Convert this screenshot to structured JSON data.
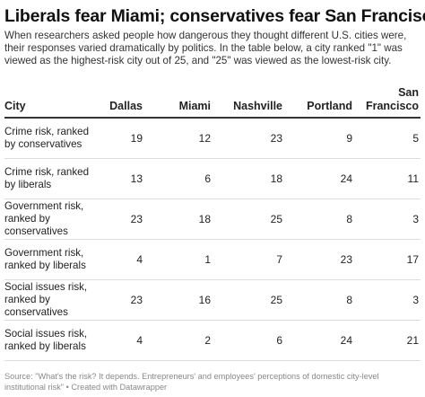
{
  "title": "Liberals fear Miami; conservatives fear San Francisco",
  "description": "When researchers asked people how dangerous they thought different U.S. cities were, their responses varied dramatically by politics. In the table below, a city ranked \"1\" was viewed as the highest-risk city out of 25, and \"25\" was viewed as the lowest-risk city.",
  "table": {
    "columns": [
      "City",
      "Dallas",
      "Miami",
      "Nashville",
      "Portland",
      "San Francisco"
    ],
    "rows": [
      {
        "label": "Crime risk, ranked by conservatives",
        "values": [
          "19",
          "12",
          "23",
          "9",
          "5"
        ]
      },
      {
        "label": "Crime risk, ranked by liberals",
        "values": [
          "13",
          "6",
          "18",
          "24",
          "11"
        ]
      },
      {
        "label": "Government risk, ranked by conservatives",
        "values": [
          "23",
          "18",
          "25",
          "8",
          "3"
        ]
      },
      {
        "label": "Government risk, ranked by liberals",
        "values": [
          "4",
          "1",
          "7",
          "23",
          "17"
        ]
      },
      {
        "label": "Social issues risk, ranked by conservatives",
        "values": [
          "23",
          "16",
          "25",
          "8",
          "3"
        ]
      },
      {
        "label": "Social issues risk, ranked by liberals",
        "values": [
          "4",
          "2",
          "6",
          "24",
          "21"
        ]
      }
    ]
  },
  "footer": {
    "source": "Source: \"What's the risk? It depends. Entrepreneurs' and employees' perceptions of domestic city-level institutional risk\" • Created with Datawrapper"
  }
}
